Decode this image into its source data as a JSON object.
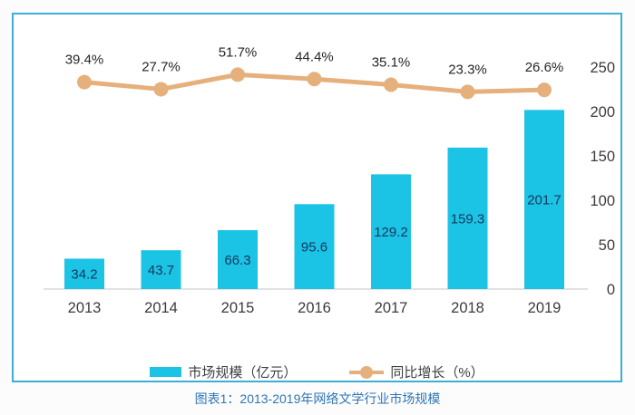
{
  "caption": "图表1：2013-2019年网络文学行业市场规模",
  "colors": {
    "bar": "#1BC3E4",
    "bar_label": "#17375E",
    "line": "#E5B07C",
    "pct_label": "#262626",
    "axis_text": "#3B3B3B",
    "baseline": "#D9D9D9",
    "frame_border": "#3CAFD8",
    "caption_text": "#2E75B6",
    "legend_text": "#404040"
  },
  "legend": {
    "items": [
      {
        "label": "市场规模（亿元）",
        "swatch": "bar-swatch"
      },
      {
        "label": "同比增长（%）",
        "swatch": "line-swatch"
      }
    ]
  },
  "chart_data": {
    "type": "bar+line",
    "title": "",
    "categories": [
      "2013",
      "2014",
      "2015",
      "2016",
      "2017",
      "2018",
      "2019"
    ],
    "series": [
      {
        "name": "市场规模（亿元）",
        "type": "bar",
        "values": [
          34.2,
          43.7,
          66.3,
          95.6,
          129.2,
          159.3,
          201.7
        ],
        "labels": [
          "34.2",
          "43.7",
          "66.3",
          "95.6",
          "129.2",
          "159.3",
          "201.7"
        ]
      },
      {
        "name": "同比增长（%）",
        "type": "line",
        "values": [
          39.4,
          27.7,
          51.7,
          44.4,
          35.1,
          23.3,
          26.6
        ],
        "labels": [
          "39.4%",
          "27.7%",
          "51.7%",
          "44.4%",
          "35.1%",
          "23.3%",
          "26.6%"
        ]
      }
    ],
    "right_axis": {
      "ticks": [
        0,
        50,
        100,
        150,
        200,
        250
      ],
      "max": 250,
      "labels": [
        "0",
        "50",
        "100",
        "150",
        "200",
        "250"
      ]
    },
    "grid": "zero-baseline only",
    "legend_position": "bottom"
  }
}
